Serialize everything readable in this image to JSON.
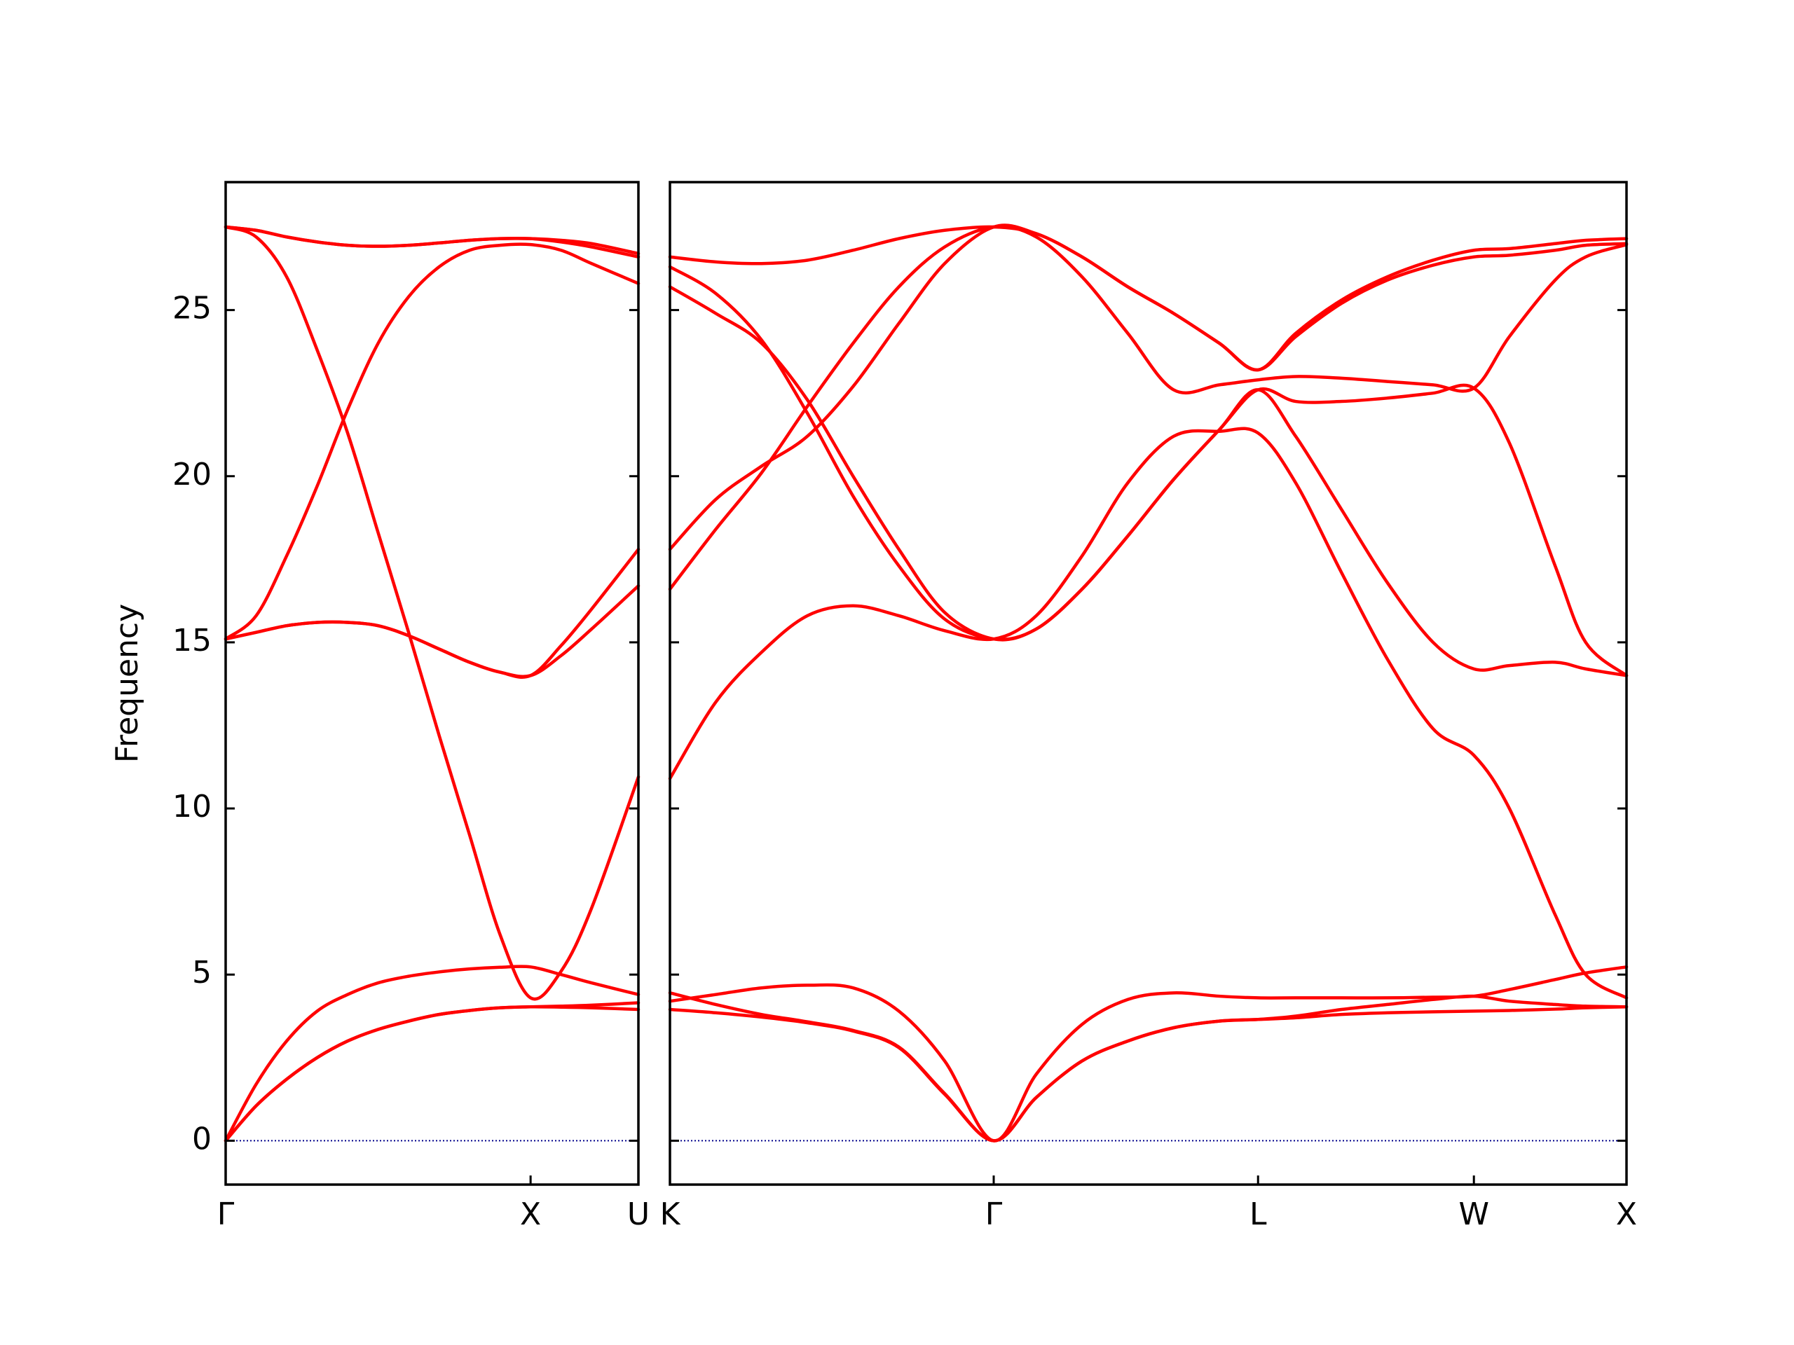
{
  "chart_data": [
    {
      "type": "line",
      "ylabel": "Frequency",
      "x": [
        0,
        0.1,
        0.2,
        0.3,
        0.4,
        0.5,
        0.6,
        0.7,
        0.8,
        0.9,
        1.0,
        1.1,
        1.2,
        1.3536
      ],
      "xlim": [
        0,
        1.3536
      ],
      "xticks": [
        {
          "value": 0,
          "label": "Γ"
        },
        {
          "value": 1.0,
          "label": "X"
        },
        {
          "value": 1.3536,
          "label": "U"
        }
      ],
      "ylim": [
        -1.32,
        28.85
      ],
      "yticks": [
        0,
        5,
        10,
        15,
        20,
        25
      ],
      "yticklabels": true,
      "hline": {
        "y": 0,
        "color": "#00008b",
        "dash": "dotted"
      },
      "series": [
        {
          "color": "#ff0000",
          "values": [
            0,
            1.05,
            1.85,
            2.5,
            3.0,
            3.35,
            3.6,
            3.8,
            3.92,
            4.0,
            4.03,
            4.02,
            4.0,
            3.95
          ]
        },
        {
          "color": "#ff0000",
          "values": [
            0,
            1.05,
            1.85,
            2.5,
            3.0,
            3.35,
            3.6,
            3.8,
            3.92,
            4.0,
            4.03,
            4.05,
            4.08,
            4.15
          ]
        },
        {
          "color": "#ff0000",
          "values": [
            0,
            1.7,
            3.0,
            3.9,
            4.4,
            4.75,
            4.95,
            5.08,
            5.17,
            5.22,
            5.23,
            5.0,
            4.75,
            4.4
          ]
        },
        {
          "color": "#ff0000",
          "values": [
            27.5,
            27.2,
            26.0,
            23.8,
            21.3,
            18.3,
            15.3,
            12.2,
            9.2,
            6.2,
            4.3,
            5.1,
            7.0,
            10.95
          ]
        },
        {
          "color": "#ff0000",
          "values": [
            15.1,
            15.3,
            15.5,
            15.6,
            15.6,
            15.5,
            15.2,
            14.8,
            14.4,
            14.1,
            14.0,
            14.6,
            15.4,
            16.7
          ]
        },
        {
          "color": "#ff0000",
          "values": [
            15.1,
            15.3,
            15.5,
            15.6,
            15.6,
            15.5,
            15.2,
            14.8,
            14.4,
            14.1,
            14.0,
            14.9,
            16.0,
            17.8
          ]
        },
        {
          "color": "#ff0000",
          "values": [
            15.1,
            15.8,
            17.6,
            19.7,
            22.0,
            24.0,
            25.4,
            26.3,
            26.8,
            26.95,
            26.97,
            26.8,
            26.4,
            25.8
          ]
        },
        {
          "color": "#ff0000",
          "values": [
            27.5,
            27.4,
            27.2,
            27.05,
            26.95,
            26.92,
            26.95,
            27.02,
            27.1,
            27.15,
            27.15,
            27.05,
            26.9,
            26.6
          ]
        },
        {
          "color": "#ff0000",
          "values": [
            27.5,
            27.4,
            27.2,
            27.05,
            26.95,
            26.92,
            26.95,
            27.02,
            27.1,
            27.15,
            27.15,
            27.1,
            27.0,
            26.7
          ]
        }
      ]
    },
    {
      "type": "line",
      "x": [
        0,
        0.15,
        0.3,
        0.45,
        0.6,
        0.75,
        0.9,
        1.0607,
        1.2,
        1.35,
        1.5,
        1.65,
        1.8,
        1.9267,
        2.05,
        2.2,
        2.35,
        2.5,
        2.6338,
        2.75,
        2.9,
        3.0,
        3.1338
      ],
      "xlim": [
        0,
        3.1338
      ],
      "xticks": [
        {
          "value": 0,
          "label": "K"
        },
        {
          "value": 1.0607,
          "label": "Γ"
        },
        {
          "value": 1.9267,
          "label": "L"
        },
        {
          "value": 2.6338,
          "label": "W"
        },
        {
          "value": 3.1338,
          "label": "X"
        }
      ],
      "ylim": [
        -1.32,
        28.85
      ],
      "yticks": [
        0,
        5,
        10,
        15,
        20,
        25
      ],
      "yticklabels": false,
      "hline": {
        "y": 0,
        "color": "#00008b",
        "dash": "dotted"
      },
      "series": [
        {
          "color": "#ff0000",
          "values": [
            3.95,
            3.85,
            3.72,
            3.55,
            3.3,
            2.8,
            1.4,
            0,
            1.3,
            2.4,
            3.0,
            3.4,
            3.6,
            3.65,
            3.7,
            3.8,
            3.85,
            3.88,
            3.9,
            3.92,
            3.96,
            4.0,
            4.03
          ]
        },
        {
          "color": "#ff0000",
          "values": [
            4.45,
            4.1,
            3.8,
            3.58,
            3.32,
            2.82,
            1.42,
            0,
            1.3,
            2.4,
            3.0,
            3.4,
            3.6,
            3.65,
            3.75,
            3.95,
            4.1,
            4.25,
            4.35,
            4.2,
            4.1,
            4.05,
            4.03
          ]
        },
        {
          "color": "#ff0000",
          "values": [
            4.2,
            4.4,
            4.6,
            4.68,
            4.6,
            3.9,
            2.4,
            0,
            2.0,
            3.5,
            4.25,
            4.45,
            4.35,
            4.3,
            4.3,
            4.3,
            4.3,
            4.32,
            4.35,
            4.55,
            4.85,
            5.05,
            5.23
          ]
        },
        {
          "color": "#ff0000",
          "values": [
            10.9,
            13.2,
            14.7,
            15.8,
            16.1,
            15.8,
            15.35,
            15.1,
            15.8,
            17.6,
            19.8,
            21.2,
            21.35,
            21.3,
            19.8,
            17.1,
            14.5,
            12.4,
            11.6,
            10.0,
            6.8,
            5.0,
            4.3
          ]
        },
        {
          "color": "#ff0000",
          "values": [
            25.7,
            24.9,
            24.0,
            22.3,
            20.0,
            17.8,
            15.9,
            15.1,
            15.4,
            16.6,
            18.2,
            19.9,
            21.4,
            22.6,
            21.2,
            19.0,
            16.8,
            15.0,
            14.2,
            14.3,
            14.4,
            14.2,
            14.0
          ]
        },
        {
          "color": "#ff0000",
          "values": [
            26.3,
            25.5,
            24.1,
            21.9,
            19.4,
            17.3,
            15.7,
            15.1,
            15.4,
            16.6,
            18.2,
            19.9,
            21.4,
            22.6,
            22.25,
            22.25,
            22.35,
            22.5,
            22.65,
            21.0,
            17.3,
            15.0,
            14.0
          ]
        },
        {
          "color": "#ff0000",
          "values": [
            16.6,
            18.4,
            20.1,
            22.1,
            24.0,
            25.7,
            26.9,
            27.5,
            27.2,
            26.0,
            24.3,
            22.6,
            22.75,
            22.9,
            23.0,
            22.95,
            22.85,
            22.75,
            22.65,
            24.2,
            25.9,
            26.6,
            26.97
          ]
        },
        {
          "color": "#ff0000",
          "values": [
            17.8,
            19.3,
            20.3,
            21.2,
            22.7,
            24.6,
            26.4,
            27.5,
            27.3,
            26.6,
            25.7,
            24.9,
            24.0,
            23.2,
            24.2,
            25.2,
            25.9,
            26.35,
            26.6,
            26.65,
            26.8,
            26.95,
            27.0
          ]
        },
        {
          "color": "#ff0000",
          "values": [
            26.6,
            26.45,
            26.4,
            26.5,
            26.8,
            27.15,
            27.4,
            27.5,
            27.3,
            26.6,
            25.7,
            24.9,
            24.0,
            23.2,
            24.3,
            25.3,
            26.0,
            26.5,
            26.8,
            26.85,
            27.0,
            27.1,
            27.15
          ]
        }
      ]
    }
  ]
}
